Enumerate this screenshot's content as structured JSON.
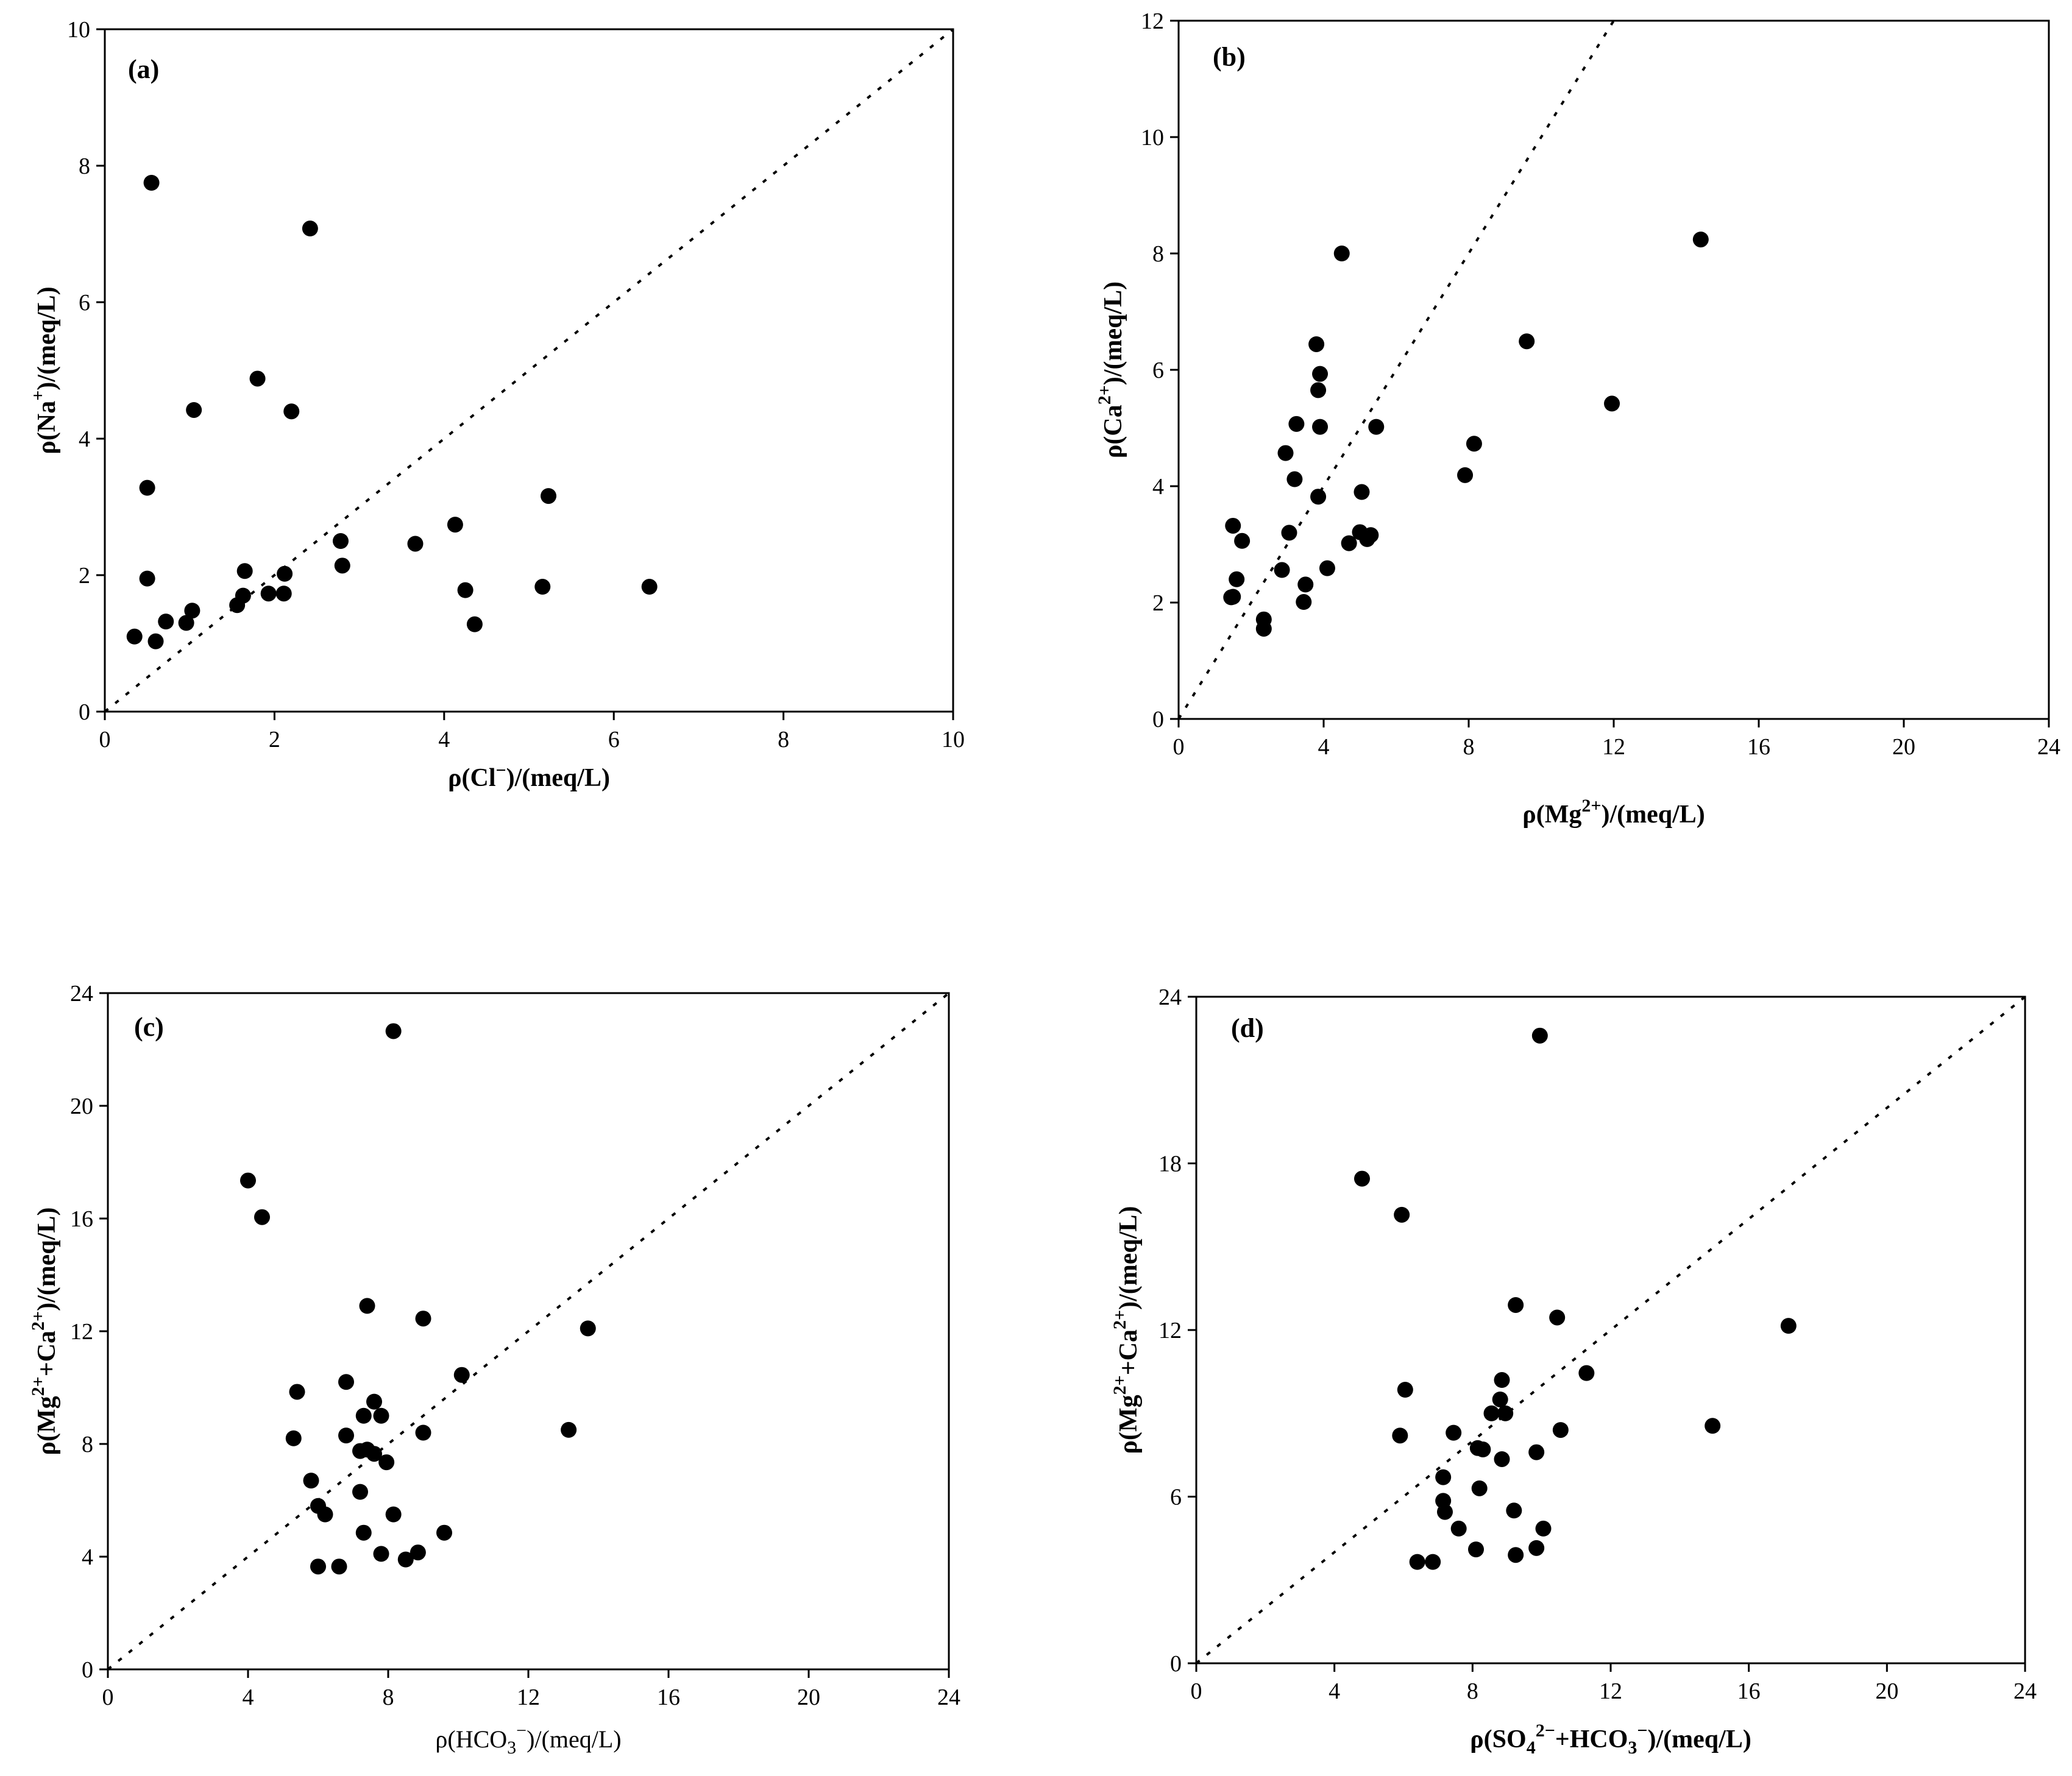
{
  "colors": {
    "ink": "#000000",
    "background": "#ffffff"
  },
  "chart_data": [
    {
      "id": "a",
      "type": "scatter",
      "panel_label": "(a)",
      "xlim": [
        0,
        10
      ],
      "ylim": [
        0,
        10
      ],
      "xticks": [
        0,
        2,
        4,
        6,
        8,
        10
      ],
      "yticks": [
        0,
        2,
        4,
        6,
        8,
        10
      ],
      "xlabel": {
        "main": "ρ(Cl",
        "sup": "−",
        "tail": ")/(meq/L)"
      },
      "ylabel": {
        "main": "ρ(Na",
        "sup": "+",
        "tail": ")/(meq/L)"
      },
      "reference_line": {
        "style": "dotted",
        "from": [
          0,
          0
        ],
        "to": [
          10,
          10
        ]
      },
      "points": [
        [
          0.55,
          7.75
        ],
        [
          2.42,
          7.08
        ],
        [
          1.8,
          4.88
        ],
        [
          1.05,
          4.42
        ],
        [
          2.2,
          4.4
        ],
        [
          0.5,
          3.28
        ],
        [
          5.23,
          3.16
        ],
        [
          2.78,
          2.5
        ],
        [
          3.66,
          2.46
        ],
        [
          4.13,
          2.74
        ],
        [
          2.8,
          2.14
        ],
        [
          1.65,
          2.06
        ],
        [
          2.12,
          2.02
        ],
        [
          0.5,
          1.95
        ],
        [
          4.25,
          1.78
        ],
        [
          5.16,
          1.83
        ],
        [
          6.42,
          1.83
        ],
        [
          1.63,
          1.7
        ],
        [
          1.93,
          1.73
        ],
        [
          2.11,
          1.73
        ],
        [
          1.56,
          1.56
        ],
        [
          1.03,
          1.48
        ],
        [
          0.72,
          1.32
        ],
        [
          0.96,
          1.3
        ],
        [
          4.36,
          1.28
        ],
        [
          0.35,
          1.1
        ],
        [
          0.6,
          1.03
        ]
      ]
    },
    {
      "id": "b",
      "type": "scatter",
      "panel_label": "(b)",
      "xlim": [
        0,
        24
      ],
      "ylim": [
        0,
        12
      ],
      "xticks": [
        0,
        4,
        8,
        12,
        16,
        20,
        24
      ],
      "yticks": [
        0,
        2,
        4,
        6,
        8,
        10,
        12
      ],
      "xlabel": {
        "main": "ρ(Mg",
        "sup": "2+",
        "tail": ")/(meq/L)"
      },
      "ylabel": {
        "main": "ρ(Ca",
        "sup": "2+",
        "tail": ")/(meq/L)"
      },
      "reference_line": {
        "style": "dotted",
        "from": [
          0,
          0
        ],
        "to": [
          12,
          12
        ]
      },
      "points": [
        [
          4.5,
          8.0
        ],
        [
          14.4,
          8.24
        ],
        [
          3.8,
          6.44
        ],
        [
          9.6,
          6.49
        ],
        [
          3.9,
          5.93
        ],
        [
          3.85,
          5.65
        ],
        [
          11.95,
          5.42
        ],
        [
          3.25,
          5.07
        ],
        [
          3.9,
          5.02
        ],
        [
          5.45,
          5.02
        ],
        [
          8.15,
          4.73
        ],
        [
          2.95,
          4.57
        ],
        [
          7.9,
          4.19
        ],
        [
          3.2,
          4.12
        ],
        [
          5.05,
          3.9
        ],
        [
          3.85,
          3.82
        ],
        [
          1.5,
          3.32
        ],
        [
          3.05,
          3.2
        ],
        [
          5.0,
          3.21
        ],
        [
          5.3,
          3.16
        ],
        [
          1.75,
          3.06
        ],
        [
          4.7,
          3.02
        ],
        [
          5.2,
          3.09
        ],
        [
          2.85,
          2.56
        ],
        [
          4.1,
          2.59
        ],
        [
          1.6,
          2.4
        ],
        [
          3.5,
          2.31
        ],
        [
          1.45,
          2.09
        ],
        [
          1.5,
          2.1
        ],
        [
          3.45,
          2.01
        ],
        [
          2.35,
          1.71
        ],
        [
          2.35,
          1.55
        ]
      ]
    },
    {
      "id": "c",
      "type": "scatter",
      "panel_label": "(c)",
      "xlim": [
        0,
        24
      ],
      "ylim": [
        0,
        24
      ],
      "xticks": [
        0,
        4,
        8,
        12,
        16,
        20,
        24
      ],
      "yticks": [
        0,
        4,
        8,
        12,
        16,
        20,
        24
      ],
      "xlabel": {
        "main": "ρ(HCO",
        "sub": "3",
        "sup": "−",
        "tail": ")/(meq/L)"
      },
      "ylabel": {
        "main": "ρ(Mg",
        "sup": "2+",
        "mid": "+Ca",
        "sup2": "2+",
        "tail": ")/(meq/L)"
      },
      "reference_line": {
        "style": "dotted",
        "from": [
          0,
          0
        ],
        "to": [
          24,
          24
        ]
      },
      "points": [
        [
          8.15,
          22.65
        ],
        [
          4.0,
          17.35
        ],
        [
          4.4,
          16.05
        ],
        [
          7.4,
          12.9
        ],
        [
          9.0,
          12.45
        ],
        [
          13.7,
          12.1
        ],
        [
          10.1,
          10.45
        ],
        [
          6.8,
          10.2
        ],
        [
          5.4,
          9.85
        ],
        [
          7.6,
          9.5
        ],
        [
          7.3,
          9.0
        ],
        [
          7.8,
          9.0
        ],
        [
          13.15,
          8.5
        ],
        [
          9.0,
          8.4
        ],
        [
          6.8,
          8.3
        ],
        [
          5.3,
          8.2
        ],
        [
          7.2,
          7.75
        ],
        [
          7.4,
          7.8
        ],
        [
          7.6,
          7.65
        ],
        [
          7.95,
          7.35
        ],
        [
          5.8,
          6.7
        ],
        [
          7.2,
          6.3
        ],
        [
          6.0,
          5.8
        ],
        [
          6.2,
          5.5
        ],
        [
          8.15,
          5.5
        ],
        [
          7.3,
          4.85
        ],
        [
          9.6,
          4.85
        ],
        [
          7.8,
          4.1
        ],
        [
          8.85,
          4.15
        ],
        [
          8.5,
          3.9
        ],
        [
          6.0,
          3.65
        ],
        [
          6.6,
          3.65
        ]
      ]
    },
    {
      "id": "d",
      "type": "scatter",
      "panel_label": "(d)",
      "xlim": [
        0,
        24
      ],
      "ylim": [
        0,
        24
      ],
      "xticks": [
        0,
        4,
        8,
        12,
        16,
        20,
        24
      ],
      "yticks": [
        0,
        6,
        12,
        18,
        24
      ],
      "xlabel": {
        "main": "ρ(SO",
        "sub": "4",
        "sup": "2−",
        "mid": "+HCO",
        "sub2": "3",
        "sup2": "−",
        "tail": ")/(meq/L)"
      },
      "ylabel": {
        "main": "ρ(Mg",
        "sup": "2+",
        "mid": "+Ca",
        "sup2": "2+",
        "tail": ")/(meq/L)"
      },
      "reference_line": {
        "style": "dotted",
        "from": [
          0,
          0
        ],
        "to": [
          24,
          24
        ]
      },
      "points": [
        [
          9.95,
          22.6
        ],
        [
          4.8,
          17.45
        ],
        [
          5.95,
          16.15
        ],
        [
          9.25,
          12.9
        ],
        [
          10.45,
          12.45
        ],
        [
          17.15,
          12.15
        ],
        [
          11.3,
          10.45
        ],
        [
          8.85,
          10.2
        ],
        [
          6.05,
          9.85
        ],
        [
          8.8,
          9.5
        ],
        [
          8.55,
          9.0
        ],
        [
          8.95,
          9.0
        ],
        [
          14.95,
          8.55
        ],
        [
          10.55,
          8.4
        ],
        [
          7.45,
          8.3
        ],
        [
          5.9,
          8.2
        ],
        [
          8.15,
          7.75
        ],
        [
          8.3,
          7.7
        ],
        [
          9.85,
          7.6
        ],
        [
          8.85,
          7.35
        ],
        [
          7.15,
          6.7
        ],
        [
          8.2,
          6.3
        ],
        [
          7.15,
          5.85
        ],
        [
          7.2,
          5.45
        ],
        [
          9.2,
          5.5
        ],
        [
          7.6,
          4.85
        ],
        [
          10.05,
          4.85
        ],
        [
          8.1,
          4.1
        ],
        [
          9.85,
          4.15
        ],
        [
          9.25,
          3.9
        ],
        [
          6.4,
          3.65
        ],
        [
          6.85,
          3.65
        ]
      ]
    }
  ]
}
